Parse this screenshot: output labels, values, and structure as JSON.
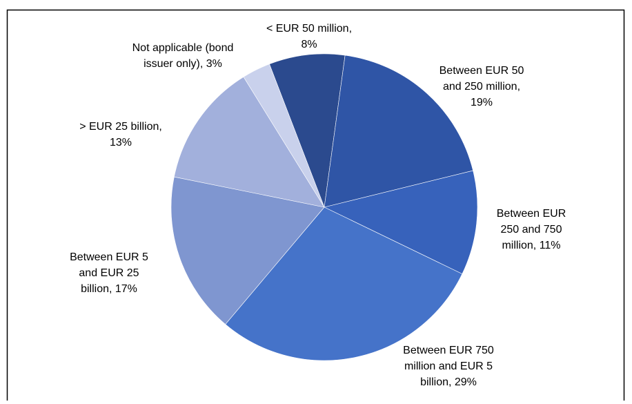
{
  "chart_data": {
    "type": "pie",
    "labels": [
      [
        "< EUR 50 million,",
        "8%"
      ],
      [
        "Between EUR 50",
        "and 250 million,",
        "19%"
      ],
      [
        "Between EUR",
        "250 and 750",
        "million, 11%"
      ],
      [
        "Between EUR 750",
        "million and EUR 5",
        "billion, 29%"
      ],
      [
        "Between EUR 5",
        "and EUR 25",
        "billion, 17%"
      ],
      [
        "> EUR 25 billion,",
        "13%"
      ],
      [
        "Not applicable (bond",
        "issuer only), 3%"
      ]
    ],
    "values": [
      8,
      19,
      11,
      29,
      17,
      13,
      3
    ],
    "colors": [
      "#2b4a8e",
      "#2f55a6",
      "#3762bb",
      "#4573c9",
      "#7f96d0",
      "#a2b0dc",
      "#c9d1ec"
    ]
  }
}
